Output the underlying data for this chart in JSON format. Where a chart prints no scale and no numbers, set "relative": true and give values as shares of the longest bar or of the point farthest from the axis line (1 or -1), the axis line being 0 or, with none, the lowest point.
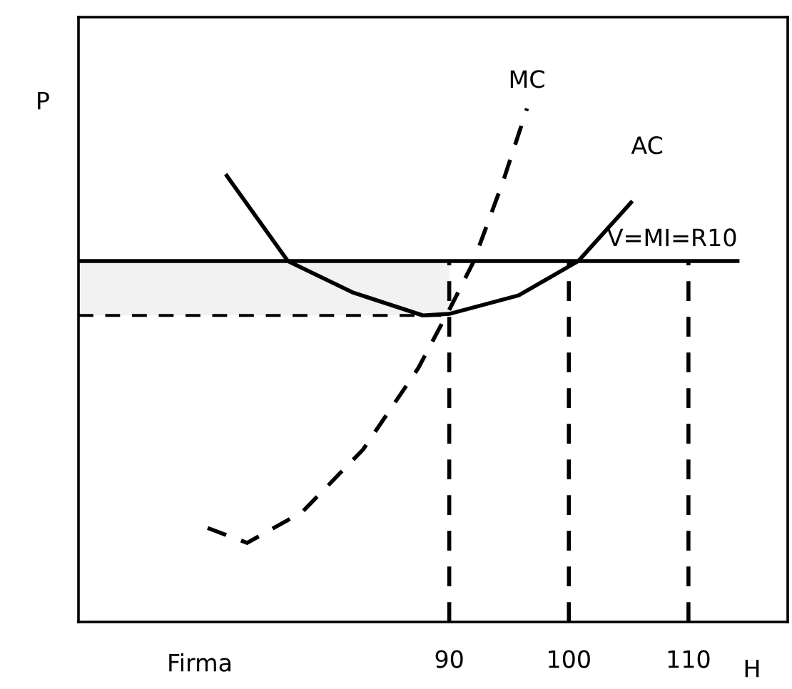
{
  "chart_data": {
    "type": "line",
    "relative": true,
    "xlabel": "H",
    "ylabel": "P",
    "annotations": [
      "Firma"
    ],
    "xlim": [
      59,
      118.3
    ],
    "xticks": [
      90,
      100,
      110
    ],
    "tick_labels": "x",
    "grid": false,
    "series": [
      {
        "name": "MC",
        "color": "#000000",
        "line_style": "dashed",
        "x": [
          69.8,
          73.1,
          77.7,
          82.8,
          87.4,
          90,
          92,
          94.5,
          96.5
        ],
        "values": [
          0.183,
          0.154,
          0.214,
          0.336,
          0.494,
          0.608,
          0.7,
          0.858,
          1.0
        ]
      },
      {
        "name": "AC",
        "color": "#000000",
        "line_style": "solid",
        "x": [
          71.4,
          76.5,
          81.9,
          87.8,
          90,
          95.8,
          100.8,
          105.2
        ],
        "values": [
          0.869,
          0.703,
          0.642,
          0.597,
          0.6,
          0.636,
          0.703,
          0.817
        ]
      },
      {
        "name": "V=MI=R10",
        "color": "#000000",
        "line_style": "solid",
        "x": [
          59.1,
          114.1
        ],
        "values": [
          0.703,
          0.703
        ]
      }
    ],
    "ref_lines": [
      {
        "axis": "x",
        "value": 90,
        "line_style": "dashed"
      },
      {
        "axis": "x",
        "value": 100,
        "line_style": "dashed"
      },
      {
        "axis": "x",
        "value": 110,
        "line_style": "dashed"
      },
      {
        "axis": "y",
        "value": 0.597,
        "line_style": "dashed"
      }
    ],
    "bands": [
      {
        "axis": "y",
        "from": 0.597,
        "to": 0.703,
        "color": "#f2f2f2"
      }
    ]
  }
}
